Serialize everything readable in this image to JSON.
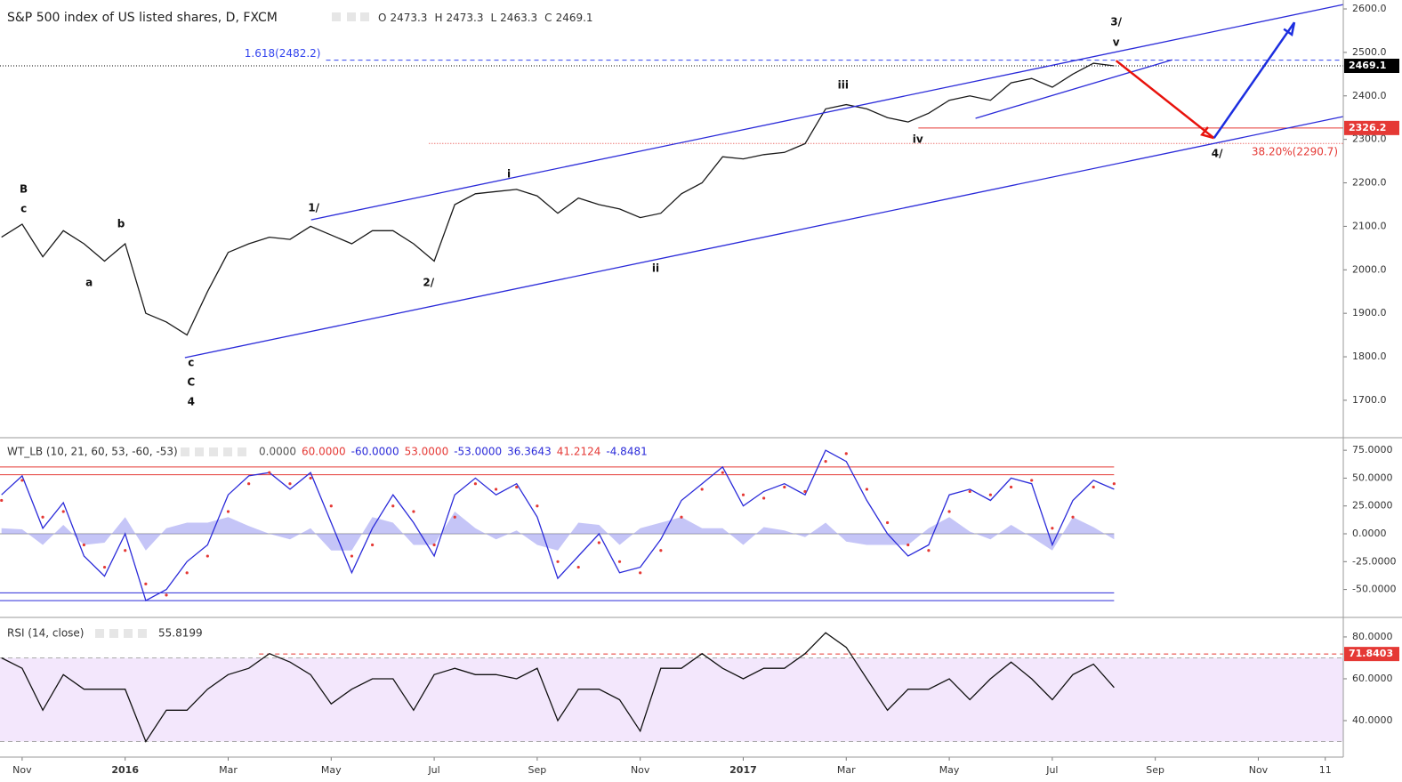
{
  "chart_data": [
    {
      "type": "line",
      "title": "S&P 500 index of US listed shares, D, FXCM",
      "ohlc": [
        {
          "label": "O",
          "value": 2473.3
        },
        {
          "label": "H",
          "value": 2473.3
        },
        {
          "label": "L",
          "value": 2463.3
        },
        {
          "label": "C",
          "value": 2469.1
        }
      ],
      "x": [
        -0.4,
        0,
        0.4,
        0.8,
        1.2,
        1.6,
        2,
        2.4,
        2.8,
        3.2,
        3.6,
        4,
        4.4,
        4.8,
        5.2,
        5.6,
        6,
        6.4,
        6.8,
        7.2,
        7.6,
        8,
        8.4,
        8.8,
        9.2,
        9.6,
        10,
        10.4,
        10.8,
        11.2,
        11.6,
        12,
        12.4,
        12.8,
        13.2,
        13.6,
        14,
        14.4,
        14.8,
        15.2,
        15.6,
        16,
        16.4,
        16.8,
        17.2,
        17.6,
        18,
        18.4,
        18.8,
        19.2,
        19.6,
        20,
        20.4,
        20.8,
        21.2
      ],
      "values": [
        2075,
        2105,
        2030,
        2090,
        2060,
        2020,
        2060,
        1900,
        1880,
        1850,
        1950,
        2040,
        2060,
        2075,
        2070,
        2100,
        2080,
        2060,
        2090,
        2090,
        2060,
        2020,
        2150,
        2175,
        2180,
        2185,
        2170,
        2130,
        2165,
        2150,
        2140,
        2120,
        2130,
        2175,
        2200,
        2260,
        2255,
        2265,
        2270,
        2290,
        2370,
        2380,
        2370,
        2350,
        2340,
        2360,
        2390,
        2400,
        2390,
        2430,
        2440,
        2420,
        2450,
        2475,
        2469.1
      ],
      "color": "#1a1a1a",
      "xlim": [
        -0.43,
        25.65
      ],
      "ylim": [
        1618,
        2620.5
      ],
      "yticks": [
        {
          "value": 2600,
          "label": "2600.0"
        },
        {
          "value": 2500,
          "label": "2500.0"
        },
        {
          "value": 2400,
          "label": "2400.0"
        },
        {
          "value": 2300,
          "label": "2300.0"
        },
        {
          "value": 2200,
          "label": "2200.0"
        },
        {
          "value": 2100,
          "label": "2100.0"
        },
        {
          "value": 2000,
          "label": "2000.0"
        },
        {
          "value": 1900,
          "label": "1900.0"
        },
        {
          "value": 1800,
          "label": "1800.0"
        },
        {
          "value": 1700,
          "label": "1700.0"
        }
      ],
      "hlines": [
        {
          "value": 2482.2,
          "color": "#3344ee",
          "style": "dashed",
          "from": 5.9,
          "label": "1.618(2482.2)",
          "label_at": "start"
        },
        {
          "value": 2469.1,
          "color": "#000000",
          "style": "dotted",
          "from": -0.43,
          "tag": true
        },
        {
          "value": 2326.2,
          "color": "#e53935",
          "style": "solid",
          "from": 17.4,
          "tag": true
        },
        {
          "value": 2290.7,
          "color": "#e53935",
          "style": "dotted",
          "from": 7.9,
          "label": "38.20%(2290.7)",
          "label_at": "end"
        }
      ],
      "trendlines": [
        {
          "x": [
            5.61,
            25.65
          ],
          "y": [
            2115,
            2610
          ],
          "color": "#2b2bd9"
        },
        {
          "x": [
            3.16,
            25.65
          ],
          "y": [
            1798,
            2352.5
          ],
          "color": "#2b2bd9"
        },
        {
          "x": [
            18.51,
            22.33
          ],
          "y": [
            2348.5,
            2483
          ],
          "color": "#2b2bd9"
        }
      ],
      "arrows": [
        {
          "x": [
            21.24,
            23.14
          ],
          "y": [
            2481,
            2303
          ],
          "color": "#e8120c"
        },
        {
          "x": [
            23.14,
            24.7
          ],
          "y": [
            2303,
            2569
          ],
          "color": "#1c2ee0"
        }
      ],
      "annotations": [
        {
          "text": "B",
          "x": 0.03,
          "y": 2185
        },
        {
          "text": "c",
          "x": 0.03,
          "y": 2140
        },
        {
          "text": "b",
          "x": 1.92,
          "y": 2105
        },
        {
          "text": "a",
          "x": 1.3,
          "y": 1970
        },
        {
          "text": "c",
          "x": 3.28,
          "y": 1786
        },
        {
          "text": "C",
          "x": 3.28,
          "y": 1741
        },
        {
          "text": "4",
          "x": 3.28,
          "y": 1696
        },
        {
          "text": "1/",
          "x": 5.66,
          "y": 2142
        },
        {
          "text": "2/",
          "x": 7.89,
          "y": 1970
        },
        {
          "text": "i",
          "x": 9.45,
          "y": 2220
        },
        {
          "text": "ii",
          "x": 12.3,
          "y": 2003
        },
        {
          "text": "iii",
          "x": 15.94,
          "y": 2424
        },
        {
          "text": "iv",
          "x": 17.39,
          "y": 2299
        },
        {
          "text": "3/",
          "x": 21.24,
          "y": 2569
        },
        {
          "text": "v",
          "x": 21.24,
          "y": 2522
        },
        {
          "text": "4/",
          "x": 23.2,
          "y": 2267
        }
      ]
    },
    {
      "type": "line",
      "title": "WT_LB (10, 21, 60, 53, -60, -53)",
      "header_values": [
        {
          "text": "0.0000",
          "color": "#555555"
        },
        {
          "text": "60.0000",
          "color": "#e53935"
        },
        {
          "text": "-60.0000",
          "color": "#2b2bd9"
        },
        {
          "text": "53.0000",
          "color": "#e53935"
        },
        {
          "text": "-53.0000",
          "color": "#2b2bd9"
        },
        {
          "text": "36.3643",
          "color": "#2b2bd9"
        },
        {
          "text": "41.2124",
          "color": "#e53935"
        },
        {
          "text": "-4.8481",
          "color": "#2b2bd9"
        }
      ],
      "x": [
        -0.4,
        0,
        0.4,
        0.8,
        1.2,
        1.6,
        2,
        2.4,
        2.8,
        3.2,
        3.6,
        4,
        4.4,
        4.8,
        5.2,
        5.6,
        6,
        6.4,
        6.8,
        7.2,
        7.6,
        8,
        8.4,
        8.8,
        9.2,
        9.6,
        10,
        10.4,
        10.8,
        11.2,
        11.6,
        12,
        12.4,
        12.8,
        13.2,
        13.6,
        14,
        14.4,
        14.8,
        15.2,
        15.6,
        16,
        16.4,
        16.8,
        17.2,
        17.6,
        18,
        18.4,
        18.8,
        19.2,
        19.6,
        20,
        20.4,
        20.8,
        21.2
      ],
      "series": [
        {
          "color": "#8c8cf0",
          "style": "area",
          "values": [
            5,
            4,
            -10,
            8,
            -10,
            -8,
            15,
            -15,
            5,
            10,
            10,
            15,
            7,
            0,
            -5,
            5,
            -15,
            -15,
            15,
            10,
            -10,
            -10,
            20,
            5,
            -5,
            3,
            -10,
            -15,
            10,
            8,
            -10,
            5,
            10,
            15,
            5,
            5,
            -10,
            6,
            3,
            -3,
            10,
            -7,
            -10,
            -10,
            -10,
            5,
            15,
            2,
            -5,
            8,
            -3,
            -15,
            15,
            6,
            -5
          ]
        },
        {
          "color": "#2b2bd9",
          "style": "line",
          "values": [
            35,
            52,
            5,
            28,
            -20,
            -38,
            0,
            -60,
            -50,
            -25,
            -10,
            35,
            52,
            55,
            40,
            55,
            10,
            -35,
            5,
            35,
            10,
            -20,
            35,
            50,
            35,
            45,
            15,
            -40,
            -20,
            0,
            -35,
            -30,
            -5,
            30,
            45,
            60,
            25,
            38,
            45,
            35,
            75,
            65,
            30,
            0,
            -20,
            -10,
            35,
            40,
            30,
            50,
            45,
            -10,
            30,
            48,
            40
          ]
        },
        {
          "color": "#e53935",
          "style": "dots",
          "values": [
            30,
            48,
            15,
            20,
            -10,
            -30,
            -15,
            -45,
            -55,
            -35,
            -20,
            20,
            45,
            55,
            45,
            50,
            25,
            -20,
            -10,
            25,
            20,
            -10,
            15,
            45,
            40,
            42,
            25,
            -25,
            -30,
            -8,
            -25,
            -35,
            -15,
            15,
            40,
            55,
            35,
            32,
            42,
            38,
            65,
            72,
            40,
            10,
            -10,
            -15,
            20,
            38,
            35,
            42,
            48,
            5,
            15,
            42,
            45
          ]
        }
      ],
      "levels": [
        {
          "value": 60,
          "color": "#e53935"
        },
        {
          "value": 53,
          "color": "#e53935"
        },
        {
          "value": 0,
          "color": "#999999"
        },
        {
          "value": -53,
          "color": "#2b2bd9"
        },
        {
          "value": -60,
          "color": "#2b2bd9"
        }
      ],
      "xlim": [
        -0.43,
        25.65
      ],
      "ylim": [
        -74.3,
        85.5
      ],
      "yticks": [
        {
          "value": 75,
          "label": "75.0000"
        },
        {
          "value": 50,
          "label": "50.0000"
        },
        {
          "value": 25,
          "label": "25.0000"
        },
        {
          "value": 0,
          "label": "0.0000"
        },
        {
          "value": -25,
          "label": "-25.0000"
        },
        {
          "value": -50,
          "label": "-50.0000"
        }
      ]
    },
    {
      "type": "line",
      "title": "RSI (14, close)",
      "x": [
        -0.4,
        0,
        0.4,
        0.8,
        1.2,
        1.6,
        2,
        2.4,
        2.8,
        3.2,
        3.6,
        4,
        4.4,
        4.8,
        5.2,
        5.6,
        6,
        6.4,
        6.8,
        7.2,
        7.6,
        8,
        8.4,
        8.8,
        9.2,
        9.6,
        10,
        10.4,
        10.8,
        11.2,
        11.6,
        12,
        12.4,
        12.8,
        13.2,
        13.6,
        14,
        14.4,
        14.8,
        15.2,
        15.6,
        16,
        16.4,
        16.8,
        17.2,
        17.6,
        18,
        18.4,
        18.8,
        19.2,
        19.6,
        20,
        20.4,
        20.8,
        21.2
      ],
      "values": [
        70,
        65,
        45,
        62,
        55,
        55,
        55,
        30,
        45,
        45,
        55,
        62,
        65,
        72,
        68,
        62,
        48,
        55,
        60,
        60,
        45,
        62,
        65,
        62,
        62,
        60,
        65,
        40,
        55,
        55,
        50,
        35,
        65,
        65,
        72,
        65,
        60,
        65,
        65,
        72,
        82,
        75,
        60,
        45,
        55,
        55,
        60,
        50,
        60,
        68,
        60,
        50,
        62,
        67,
        55.8199
      ],
      "color": "#111111",
      "band": [
        30,
        70
      ],
      "band_color": "#f3e7fc",
      "hlines": [
        {
          "value": 71.8403,
          "color": "#e53935",
          "style": "dashed",
          "from": 4.6,
          "tag": true
        }
      ],
      "xlim": [
        -0.43,
        25.65
      ],
      "ylim": [
        23,
        88.9
      ],
      "yticks": [
        {
          "value": 80,
          "label": "80.0000"
        },
        {
          "value": 60,
          "label": "60.0000"
        },
        {
          "value": 40,
          "label": "40.0000"
        }
      ],
      "xticks": [
        {
          "value": 0,
          "label": "Nov"
        },
        {
          "value": 2,
          "label": "2016"
        },
        {
          "value": 4,
          "label": "Mar"
        },
        {
          "value": 6,
          "label": "May"
        },
        {
          "value": 8,
          "label": "Jul"
        },
        {
          "value": 10,
          "label": "Sep"
        },
        {
          "value": 12,
          "label": "Nov"
        },
        {
          "value": 14,
          "label": "2017"
        },
        {
          "value": 16,
          "label": "Mar"
        },
        {
          "value": 18,
          "label": "May"
        },
        {
          "value": 20,
          "label": "Jul"
        },
        {
          "value": 22,
          "label": "Sep"
        },
        {
          "value": 24,
          "label": "Nov"
        },
        {
          "value": 25.3,
          "label": "11"
        }
      ]
    }
  ]
}
